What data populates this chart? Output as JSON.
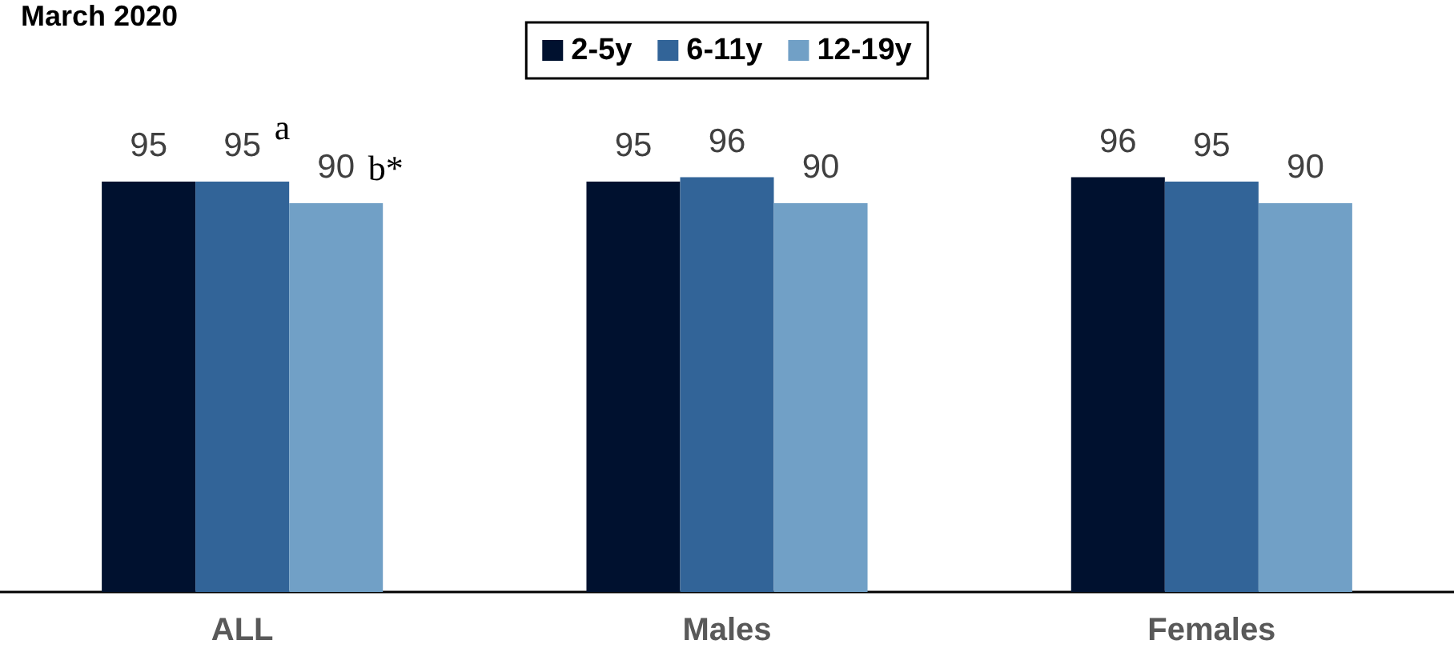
{
  "chart_data": {
    "type": "bar",
    "title": "March 2020",
    "categories": [
      "ALL",
      "Males",
      "Females"
    ],
    "series": [
      {
        "name": "2-5y",
        "color": "#00112f",
        "values": [
          95,
          95,
          96
        ]
      },
      {
        "name": "6-11y",
        "color": "#326498",
        "values": [
          95,
          96,
          95
        ]
      },
      {
        "name": "12-19y",
        "color": "#71a0c6",
        "values": [
          90,
          90,
          90
        ]
      }
    ],
    "data_labels": true,
    "legend": "top",
    "annotations": [
      {
        "text": "a",
        "x": "ALL",
        "y": 95
      },
      "b*"
    ]
  }
}
